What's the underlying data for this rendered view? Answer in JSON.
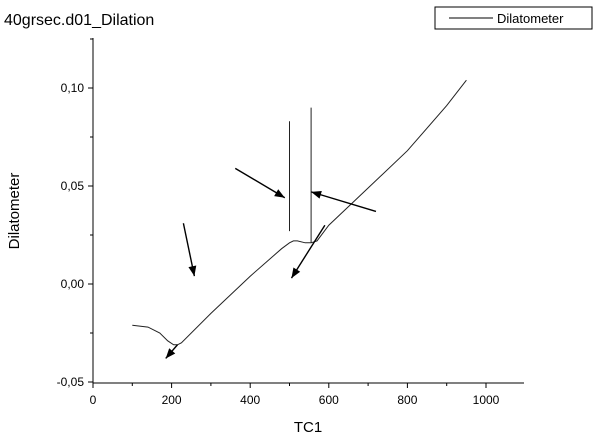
{
  "chart_data": {
    "type": "line",
    "title": "40grsec.d01_Dilation",
    "xlabel": "TC1",
    "ylabel": "Dilatometer",
    "xlim": [
      0,
      1100
    ],
    "ylim": [
      -0.05,
      0.125
    ],
    "x_ticks": [
      0,
      200,
      400,
      600,
      800,
      1000
    ],
    "x_tick_labels": [
      "0",
      "200",
      "400",
      "600",
      "800",
      "1000"
    ],
    "y_ticks": [
      -0.05,
      0.0,
      0.05,
      0.1
    ],
    "y_tick_labels": [
      "-0,05",
      "0,00",
      "0,05",
      "0,10"
    ],
    "legend": {
      "position": "top-right",
      "entries": [
        "Dilatometer"
      ]
    },
    "grid": false,
    "series": [
      {
        "name": "Dilatometer",
        "segments": [
          {
            "x": [
              100,
              140,
              170,
              190,
              205,
              215,
              225,
              300,
              400,
              480,
              500,
              510,
              520,
              540,
              555,
              570,
              600,
              700,
              800,
              900,
              950
            ],
            "y": [
              -0.021,
              -0.022,
              -0.025,
              -0.029,
              -0.031,
              -0.031,
              -0.03,
              -0.015,
              0.004,
              0.018,
              0.021,
              0.022,
              0.022,
              0.021,
              0.021,
              0.022,
              0.03,
              0.049,
              0.068,
              0.091,
              0.104
            ]
          },
          {
            "x": [
              500,
              500
            ],
            "y": [
              0.027,
              0.083
            ]
          },
          {
            "x": [
              555,
              555
            ],
            "y": [
              0.021,
              0.09
            ]
          }
        ]
      }
    ],
    "annotations": [
      {
        "type": "arrow",
        "from": [
          230,
          0.031
        ],
        "to": [
          258,
          0.004
        ]
      },
      {
        "type": "arrow",
        "from": [
          362,
          0.059
        ],
        "to": [
          488,
          0.044
        ]
      },
      {
        "type": "arrow",
        "from": [
          720,
          0.037
        ],
        "to": [
          555,
          0.047
        ]
      },
      {
        "type": "arrow",
        "from": [
          590,
          0.03
        ],
        "to": [
          505,
          0.003
        ]
      },
      {
        "type": "arrow",
        "from": [
          215,
          -0.031
        ],
        "to": [
          185,
          -0.038
        ]
      }
    ]
  }
}
